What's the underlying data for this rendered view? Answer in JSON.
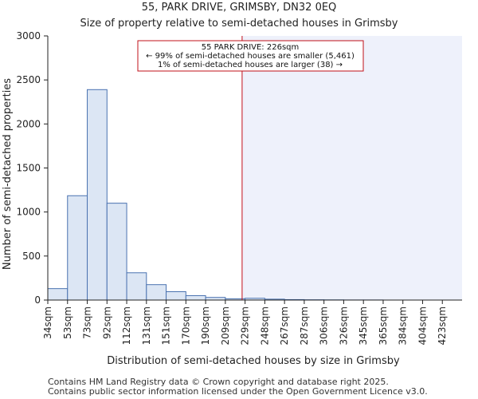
{
  "chart_data": {
    "type": "bar",
    "title": "55, PARK DRIVE, GRIMSBY, DN32 0EQ",
    "subtitle": "Size of property relative to semi-detached houses in Grimsby",
    "xlabel": "Distribution of semi-detached houses by size in Grimsby",
    "ylabel": "Number of semi-detached properties",
    "ylim": [
      0,
      3000
    ],
    "yticks": [
      0,
      500,
      1000,
      1500,
      2000,
      2500,
      3000
    ],
    "categories": [
      "34sqm",
      "53sqm",
      "73sqm",
      "92sqm",
      "112sqm",
      "131sqm",
      "151sqm",
      "170sqm",
      "190sqm",
      "209sqm",
      "229sqm",
      "248sqm",
      "267sqm",
      "287sqm",
      "306sqm",
      "326sqm",
      "345sqm",
      "365sqm",
      "384sqm",
      "404sqm",
      "423sqm"
    ],
    "values": [
      130,
      1185,
      2390,
      1100,
      310,
      175,
      95,
      50,
      30,
      15,
      20,
      10,
      5,
      3,
      2,
      1,
      1,
      0,
      0,
      0,
      0
    ],
    "property_size_sqm": 226,
    "highlight_after_sqm": 226,
    "grid": false,
    "colors": {
      "bar_fill": "#dce6f4",
      "bar_stroke": "#4a72b0",
      "highlight_region": "#eef1fb",
      "marker_line": "#c0101a",
      "annotation_border": "#c0101a"
    },
    "annotation": {
      "line1": "55 PARK DRIVE: 226sqm",
      "line2": "← 99% of semi-detached houses are smaller (5,461)",
      "line3": "1% of semi-detached houses are larger (38) →"
    }
  },
  "footer": {
    "line1": "Contains HM Land Registry data © Crown copyright and database right 2025.",
    "line2": "Contains public sector information licensed under the Open Government Licence v3.0."
  }
}
